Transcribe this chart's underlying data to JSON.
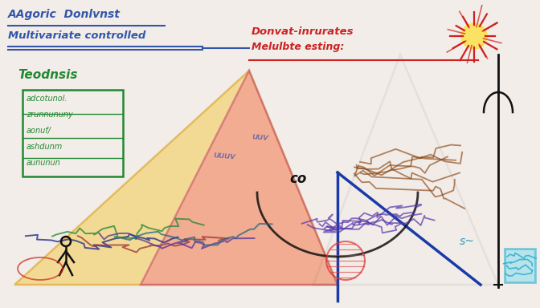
{
  "background_color": "#f2ede8",
  "title_left_line1": "AAgoric  Donlvnst",
  "title_left_line2": "Multivariate controlled",
  "title_right_line1": "Donvat-inrurates",
  "title_right_line2": "Melulbte esting:",
  "left_label": "Teodnsis",
  "left_box_lines": [
    "adcotunol.",
    "zrunnununy",
    "aonuf/",
    "ashdunm",
    "aununun"
  ],
  "arrow_color": "#3355aa",
  "title_left_color": "#3355aa",
  "title_right_color": "#cc2222",
  "left_label_color": "#228833",
  "left_box_color": "#228833",
  "tri1_color": "#f5c842",
  "tri2_color": "#f08090",
  "tri3_color": "#111111",
  "sun_outer_color": "#cc2222",
  "sun_inner_color": "#ffe040"
}
